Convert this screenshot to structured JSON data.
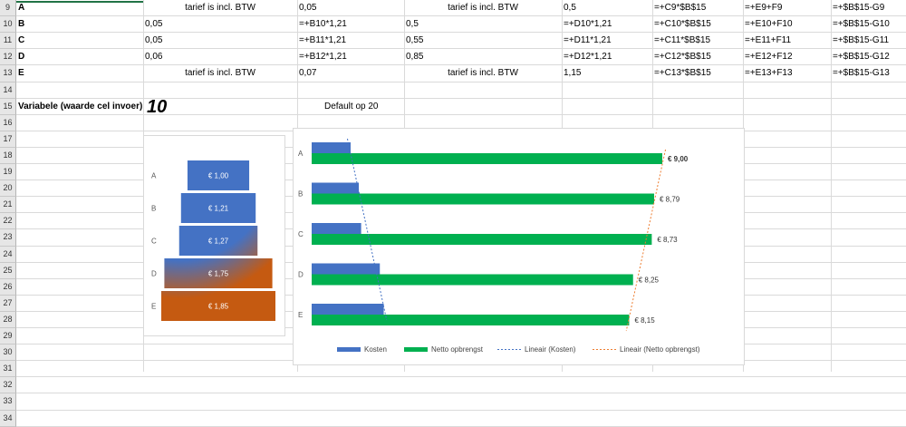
{
  "rows": [
    {
      "num": "9",
      "A": "A",
      "B": "tarief is incl. BTW",
      "C": "0,05",
      "D": "tarief is incl. BTW",
      "E": "0,5",
      "F": "=+C9*$B$15",
      "G": "=+E9+F9",
      "H": "=+$B$15-G9"
    },
    {
      "num": "10",
      "A": "B",
      "B": "0,05",
      "C": "=+B10*1,21",
      "D": "0,5",
      "E": "=+D10*1,21",
      "F": "=+C10*$B$15",
      "G": "=+E10+F10",
      "H": "=+$B$15-G10"
    },
    {
      "num": "11",
      "A": "C",
      "B": "0,05",
      "C": "=+B11*1,21",
      "D": "0,55",
      "E": "=+D11*1,21",
      "F": "=+C11*$B$15",
      "G": "=+E11+F11",
      "H": "=+$B$15-G11"
    },
    {
      "num": "12",
      "A": "D",
      "B": "0,06",
      "C": "=+B12*1,21",
      "D": "0,85",
      "E": "=+D12*1,21",
      "F": "=+C12*$B$15",
      "G": "=+E12+F12",
      "H": "=+$B$15-G12"
    },
    {
      "num": "13",
      "A": "E",
      "B": "tarief is incl. BTW",
      "C": "0,07",
      "D": "tarief is incl. BTW",
      "E": "1,15",
      "F": "=+C13*$B$15",
      "G": "=+E13+F13",
      "H": "=+$B$15-G13"
    }
  ],
  "row_numbers": [
    "14",
    "15",
    "16",
    "17",
    "18",
    "19",
    "20",
    "21",
    "22",
    "23",
    "24",
    "25",
    "26",
    "27",
    "28",
    "29",
    "30",
    "31",
    "32",
    "33",
    "34"
  ],
  "variable": {
    "label": "Variabele (waarde cel invoer)",
    "value": "10",
    "default_note": "Default op 20"
  },
  "chart_data": [
    {
      "type": "bar",
      "orientation": "horizontal-stacked-funnel",
      "categories": [
        "A",
        "B",
        "C",
        "D",
        "E"
      ],
      "values": [
        1.0,
        1.21,
        1.27,
        1.75,
        1.85
      ],
      "labels": [
        "€ 1,00",
        "€ 1,21",
        "€ 1,27",
        "€ 1,75",
        "€ 1,85"
      ],
      "colors": {
        "blue": "#4472c4",
        "orange": "#c55a11"
      }
    },
    {
      "type": "bar",
      "orientation": "horizontal",
      "categories": [
        "A",
        "B",
        "C",
        "D",
        "E"
      ],
      "series": [
        {
          "name": "Kosten",
          "values": [
            1.0,
            1.21,
            1.27,
            1.75,
            1.85
          ],
          "color": "#4472c4"
        },
        {
          "name": "Netto opbrengst",
          "values": [
            9.0,
            8.79,
            8.73,
            8.25,
            8.15
          ],
          "color": "#00b050"
        }
      ],
      "data_labels": [
        "€ 9,00",
        "€ 8,79",
        "€ 8,73",
        "€ 8,25",
        "€ 8,15"
      ],
      "trendlines": [
        {
          "name": "Lineair (Kosten)",
          "color": "#4472c4"
        },
        {
          "name": "Lineair (Netto opbrengst)",
          "color": "#ed7d31"
        }
      ],
      "xlim": [
        0,
        10
      ]
    }
  ]
}
